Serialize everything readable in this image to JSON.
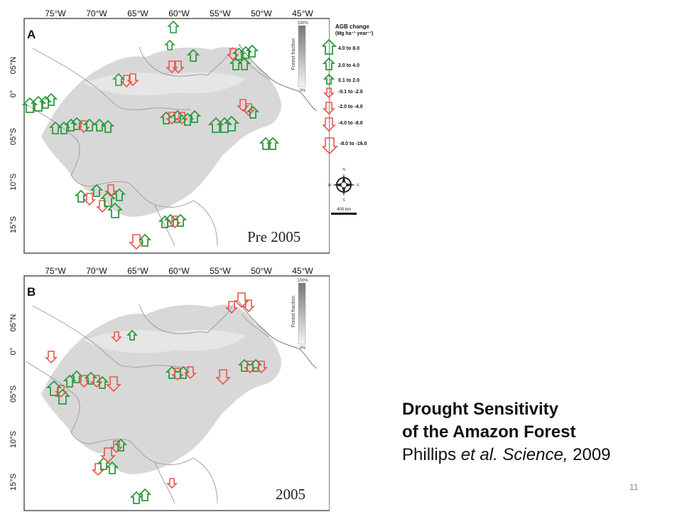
{
  "colors": {
    "gain": "#2e9a3e",
    "loss": "#e8574c",
    "forest": "#d9d9d9",
    "border": "#9a9a9a"
  },
  "maps": [
    {
      "panel_letter": "A",
      "period_label": "Pre 2005",
      "lon_labels": [
        "75°W",
        "70°W",
        "65°W",
        "60°W",
        "55°W",
        "50°W",
        "45°W"
      ],
      "lat_labels": [
        "05°N",
        "0°",
        "05°S",
        "10°S",
        "15°S"
      ],
      "forest_bar": {
        "title": "Forest fraction",
        "top": "100%",
        "bottom": "0%"
      },
      "legend": {
        "title": "AGB change",
        "units": "(Mg ha⁻¹ year⁻¹)",
        "entries": [
          "4.0 to 8.0",
          "2.0 to 4.0",
          "0.1 to 2.0",
          "-0.1 to -2.0",
          "-2.0 to -4.0",
          "-4.0 to -8.0",
          "-8.0 to -16.0"
        ]
      },
      "compass": {
        "n": "N",
        "e": "E",
        "s": "S",
        "w": "W"
      },
      "scale_label": "400 km"
    },
    {
      "panel_letter": "B",
      "period_label": "2005",
      "lon_labels": [
        "75°W",
        "70°W",
        "65°W",
        "60°W",
        "55°W",
        "50°W",
        "45°W"
      ],
      "lat_labels": [
        "05°N",
        "0°",
        "05°S",
        "10°S",
        "15°S"
      ],
      "forest_bar": {
        "title": "Forest fraction",
        "top": "100%",
        "bottom": "0%"
      }
    }
  ],
  "caption": {
    "line1": "Drought Sensitivity",
    "line2": "of the Amazon Forest",
    "authors": "Phillips",
    "etal": "et al.",
    "journal": "Science,",
    "year": "2009"
  },
  "page_number": "11"
}
